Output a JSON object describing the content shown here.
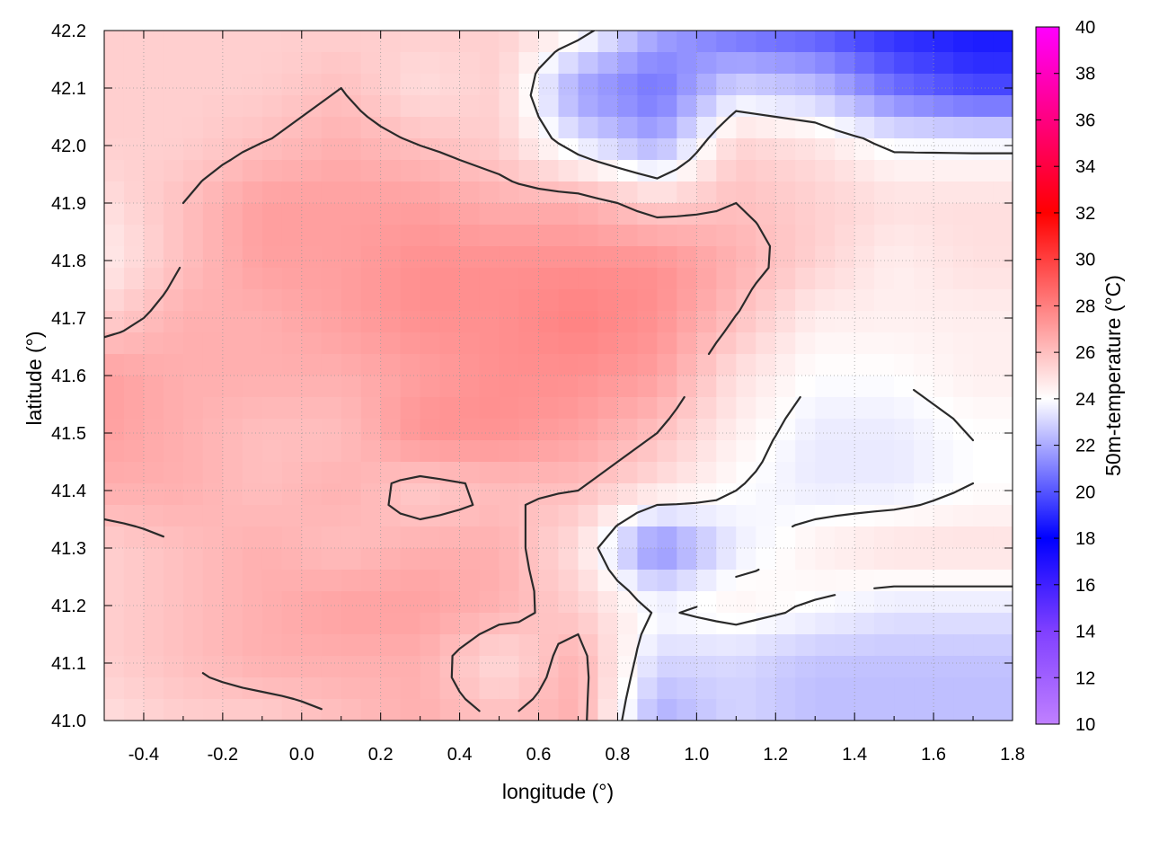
{
  "chart_data": {
    "type": "heatmap",
    "xlabel": "longitude (°)",
    "ylabel": "latitude (°)",
    "colorbar_label": "50m-temperature (°C)",
    "xlim": [
      -0.5,
      1.8
    ],
    "ylim": [
      41.0,
      42.2
    ],
    "color_range": [
      10,
      40
    ],
    "grid": true,
    "contours": true,
    "x_ticks": [
      "-0.4",
      "-0.2",
      "0.0",
      "0.2",
      "0.4",
      "0.6",
      "0.8",
      "1.0",
      "1.2",
      "1.4",
      "1.6",
      "1.8"
    ],
    "x_tick_values": [
      -0.4,
      -0.2,
      0.0,
      0.2,
      0.4,
      0.6,
      0.8,
      1.0,
      1.2,
      1.4,
      1.6,
      1.8
    ],
    "y_ticks": [
      "41.0",
      "41.1",
      "41.2",
      "41.3",
      "41.4",
      "41.5",
      "41.6",
      "41.7",
      "41.8",
      "41.9",
      "42.0",
      "42.1",
      "42.2"
    ],
    "y_tick_values": [
      41.0,
      41.1,
      41.2,
      41.3,
      41.4,
      41.5,
      41.6,
      41.7,
      41.8,
      41.9,
      42.0,
      42.1,
      42.2
    ],
    "colorbar_ticks": [
      "10",
      "12",
      "14",
      "16",
      "18",
      "20",
      "22",
      "24",
      "26",
      "28",
      "30",
      "32",
      "34",
      "36",
      "38",
      "40"
    ],
    "colorbar_tick_values": [
      10,
      12,
      14,
      16,
      18,
      20,
      22,
      24,
      26,
      28,
      30,
      32,
      34,
      36,
      38,
      40
    ],
    "colorbar_stops": [
      {
        "value": 10,
        "color": "#c080ff"
      },
      {
        "value": 14,
        "color": "#8040ff"
      },
      {
        "value": 18,
        "color": "#0000ff"
      },
      {
        "value": 24,
        "color": "#ffffff"
      },
      {
        "value": 32,
        "color": "#ff0000"
      },
      {
        "value": 36,
        "color": "#ff0080"
      },
      {
        "value": 40,
        "color": "#ff00ff"
      }
    ],
    "field_samples": {
      "lon": [
        -0.5,
        -0.3,
        -0.1,
        0.1,
        0.3,
        0.5,
        0.7,
        0.9,
        1.1,
        1.3,
        1.5,
        1.7,
        1.8
      ],
      "lat": [
        41.0,
        41.1,
        41.2,
        41.3,
        41.4,
        41.5,
        41.6,
        41.7,
        41.8,
        41.9,
        42.0,
        42.1,
        42.2
      ],
      "values": [
        [
          25.0,
          25.5,
          25.5,
          26.0,
          26.5,
          26.0,
          26.5,
          22.0,
          23.0,
          22.5,
          22.5,
          22.5,
          22.5
        ],
        [
          25.5,
          26.0,
          26.5,
          26.5,
          26.5,
          25.0,
          26.5,
          23.0,
          23.0,
          22.5,
          22.5,
          22.5,
          22.5
        ],
        [
          25.5,
          26.0,
          26.5,
          27.0,
          27.0,
          26.5,
          25.5,
          24.0,
          24.5,
          24.0,
          23.5,
          23.5,
          23.5
        ],
        [
          25.5,
          26.0,
          26.5,
          26.0,
          26.5,
          26.5,
          25.0,
          21.0,
          23.5,
          24.5,
          25.0,
          25.0,
          25.0
        ],
        [
          26.5,
          26.5,
          26.0,
          26.5,
          25.5,
          26.0,
          26.0,
          25.0,
          24.0,
          23.5,
          23.5,
          24.0,
          24.0
        ],
        [
          27.0,
          26.5,
          26.0,
          26.0,
          27.5,
          27.5,
          27.0,
          26.0,
          24.5,
          23.5,
          23.5,
          24.0,
          24.0
        ],
        [
          27.0,
          26.5,
          26.5,
          26.5,
          27.0,
          27.5,
          27.5,
          27.0,
          25.0,
          24.0,
          24.0,
          24.5,
          24.5
        ],
        [
          25.5,
          26.5,
          26.5,
          27.0,
          27.5,
          27.5,
          28.0,
          27.5,
          26.0,
          24.5,
          24.5,
          24.5,
          24.5
        ],
        [
          24.5,
          26.0,
          27.0,
          27.0,
          27.5,
          27.5,
          27.5,
          27.5,
          26.5,
          25.5,
          24.5,
          25.0,
          25.0
        ],
        [
          25.0,
          26.0,
          27.0,
          27.0,
          27.0,
          26.5,
          26.5,
          25.5,
          26.0,
          25.5,
          25.0,
          25.0,
          25.0
        ],
        [
          25.5,
          25.5,
          26.0,
          26.5,
          26.0,
          25.5,
          23.5,
          22.0,
          25.5,
          25.0,
          24.0,
          24.0,
          24.0
        ],
        [
          25.5,
          25.5,
          25.5,
          26.0,
          25.0,
          25.5,
          21.5,
          20.5,
          23.0,
          22.5,
          20.5,
          19.5,
          19.5
        ],
        [
          25.5,
          25.5,
          25.5,
          25.5,
          25.5,
          25.5,
          24.5,
          22.0,
          20.5,
          20.0,
          19.0,
          18.5,
          18.5
        ]
      ]
    }
  }
}
